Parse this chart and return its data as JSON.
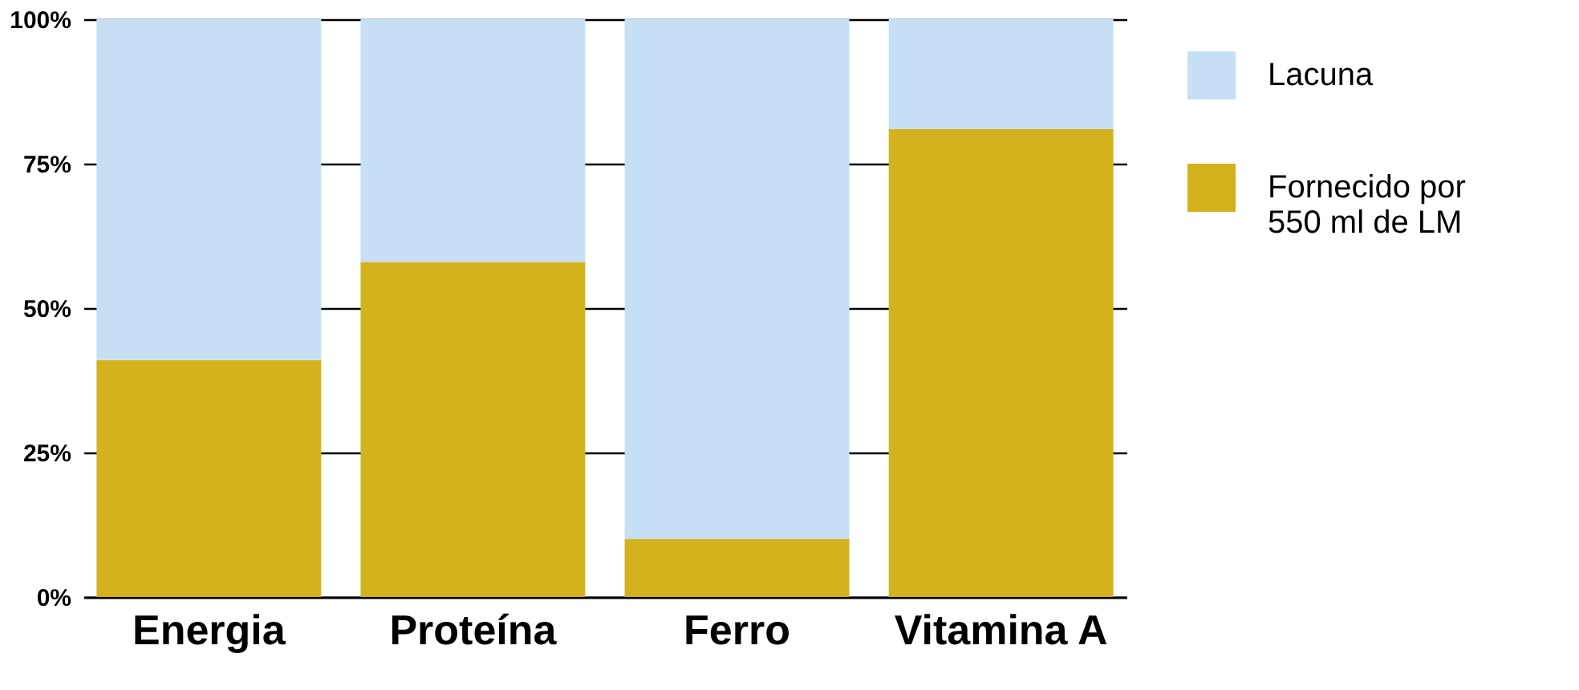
{
  "chart_data": {
    "type": "bar",
    "stacked": true,
    "categories": [
      "Energia",
      "Proteína",
      "Ferro",
      "Vitamina A"
    ],
    "series": [
      {
        "name": "Fornecido por\n550 ml de LM",
        "color": "#d4b21e",
        "values": [
          41,
          58,
          10,
          81
        ]
      },
      {
        "name": "Lacuna",
        "color": "#c6dff5",
        "values": [
          59,
          42,
          90,
          19
        ]
      }
    ],
    "ylim": [
      0,
      100
    ],
    "yticks": [
      {
        "value": 0,
        "label": "0%"
      },
      {
        "value": 25,
        "label": "25%"
      },
      {
        "value": 50,
        "label": "50%"
      },
      {
        "value": 75,
        "label": "75%"
      },
      {
        "value": 100,
        "label": "100%"
      }
    ],
    "grid": "y",
    "legend": "right"
  }
}
